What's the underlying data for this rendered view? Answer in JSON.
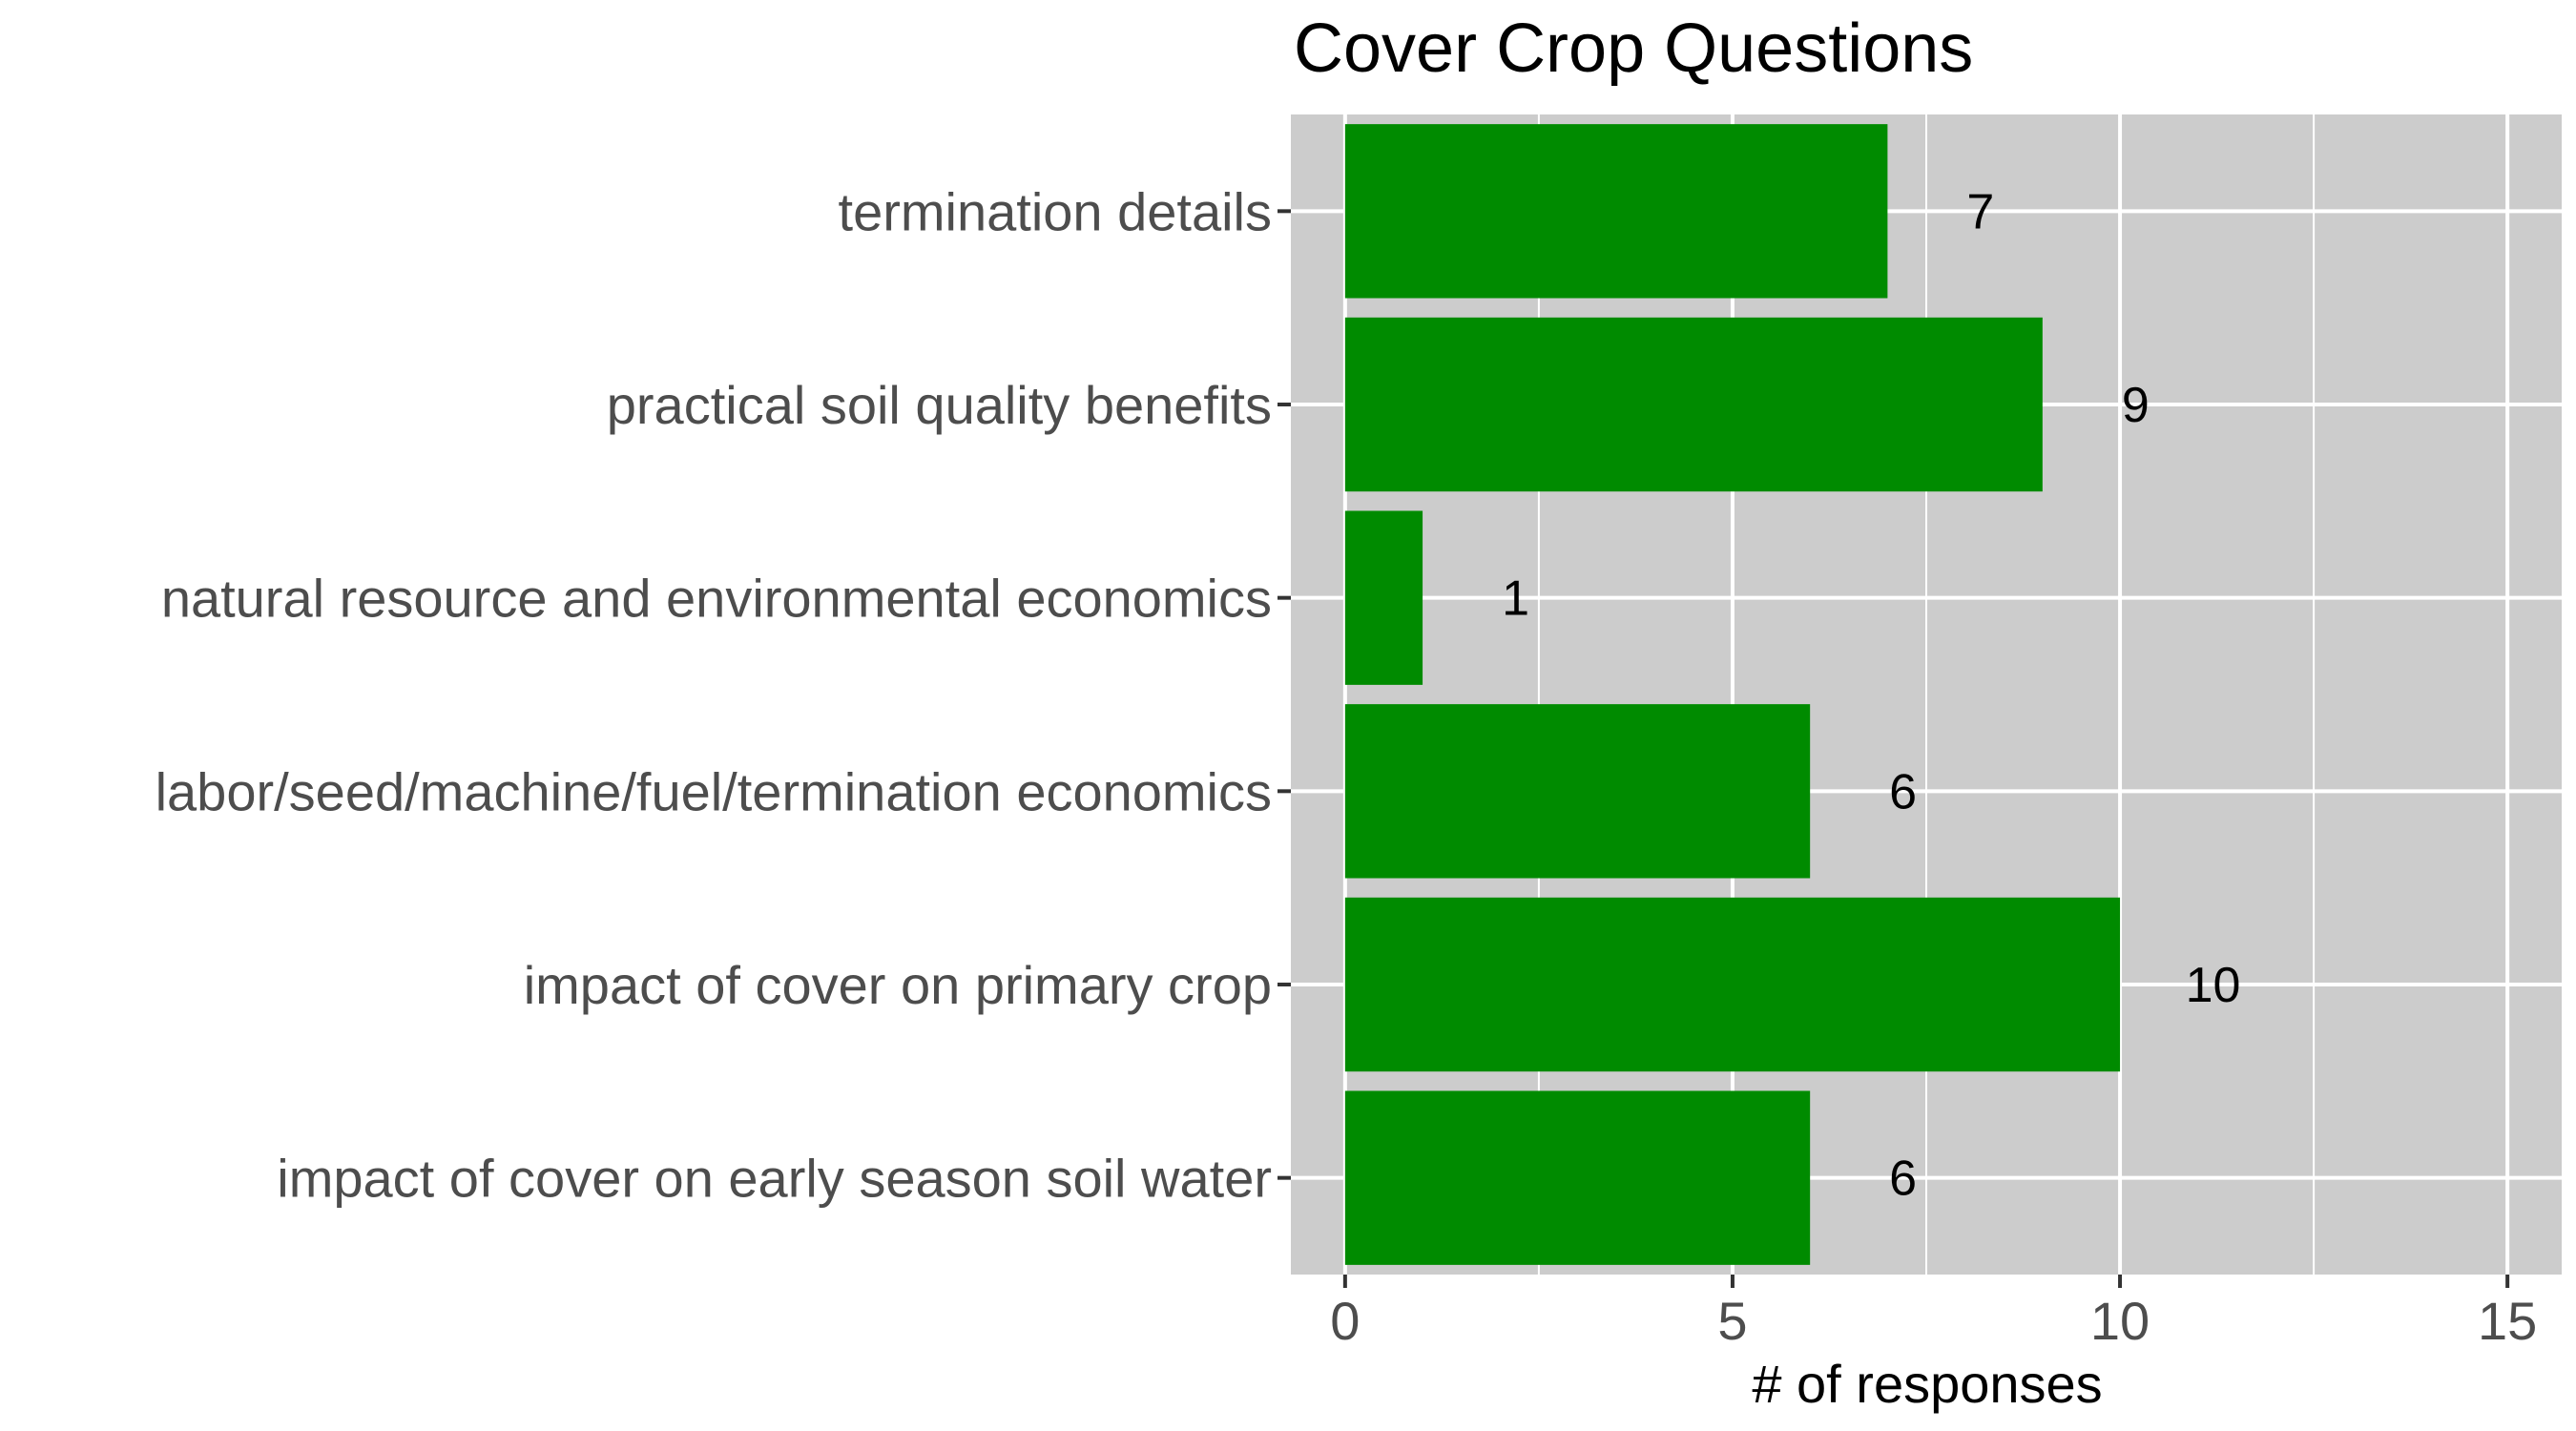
{
  "chart_data": {
    "type": "bar",
    "orientation": "horizontal",
    "title": "Cover Crop Questions",
    "xlabel": "# of responses",
    "ylabel": "",
    "xlim": [
      -0.7,
      15.7
    ],
    "xticks": [
      0,
      5,
      10,
      15
    ],
    "minor_grid": [
      2.5,
      7.5,
      12.5
    ],
    "grid": true,
    "legend": "none",
    "categories": [
      "termination details",
      "practical soil quality benefits",
      "natural resource and environmental economics",
      "labor/seed/machine/fuel/termination economics",
      "impact of cover on primary crop",
      "impact of cover on early season soil water"
    ],
    "values": [
      7,
      9,
      1,
      6,
      10,
      6
    ],
    "data_labels": [
      "7",
      "9",
      "1",
      "6",
      "10",
      "6"
    ],
    "colors": {
      "bar": "#008b00",
      "panel": "#cccccc",
      "grid": "#ffffff",
      "tick_text": "#4d4d4d",
      "text": "#000000"
    }
  }
}
